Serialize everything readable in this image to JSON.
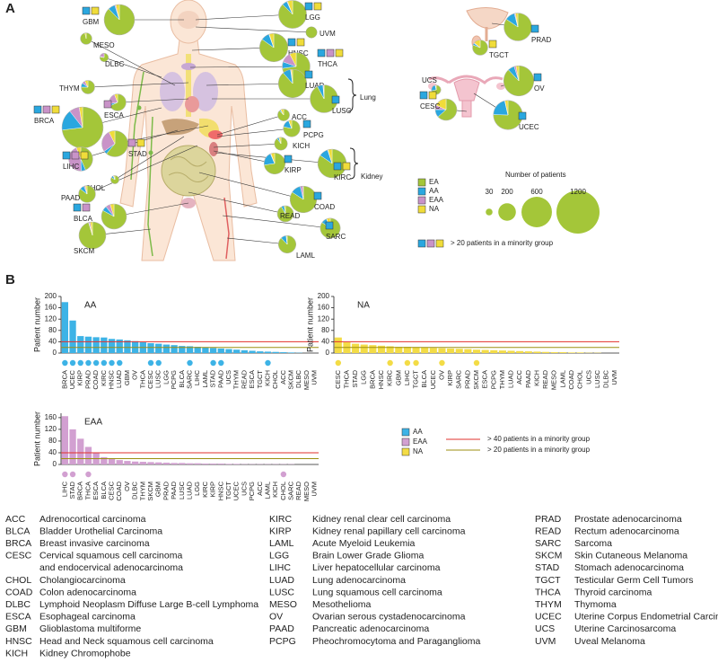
{
  "panel_labels": [
    "A",
    "B"
  ],
  "chart_data": [
    {
      "type": "pie",
      "categories": [
        "GBM",
        "MESO",
        "DLBC",
        "THYM",
        "ESCA",
        "BRCA",
        "STAD",
        "LIHC",
        "CHOL",
        "PAAD",
        "BLCA",
        "SKCM",
        "LGG",
        "UVM",
        "HNSC",
        "THCA",
        "LUAD",
        "LUSC",
        "ACC",
        "PCPG",
        "KICH",
        "KIRP",
        "KIRC",
        "COAD",
        "READ",
        "SARC",
        "LAML",
        "PRAD",
        "TGCT",
        "OV",
        "UCS",
        "CESC",
        "UCEC"
      ],
      "series": [
        {
          "name": "EA",
          "color": "#a4c639",
          "values": [
            526,
            84,
            37,
            90,
            126,
            804,
            269,
            161,
            38,
            158,
            340,
            448,
            446,
            80,
            441,
            364,
            460,
            461,
            81,
            141,
            99,
            211,
            448,
            387,
            156,
            220,
            176,
            422,
            121,
            519,
            41,
            190,
            415
          ]
        },
        {
          "name": "AA",
          "color": "#2aa7df",
          "values": [
            45,
            0,
            1,
            12,
            8,
            180,
            18,
            22,
            4,
            16,
            25,
            2,
            30,
            0,
            50,
            38,
            48,
            33,
            3,
            28,
            5,
            60,
            55,
            56,
            10,
            24,
            20,
            58,
            6,
            42,
            14,
            35,
            115
          ],
          "flagged": [
            true,
            false,
            false,
            false,
            false,
            true,
            false,
            true,
            false,
            false,
            true,
            false,
            true,
            false,
            true,
            true,
            true,
            true,
            false,
            true,
            false,
            true,
            true,
            true,
            false,
            true,
            false,
            true,
            false,
            true,
            false,
            true,
            true
          ]
        },
        {
          "name": "EAA",
          "color": "#c993c8",
          "values": [
            7,
            0,
            10,
            9,
            40,
            88,
            120,
            165,
            1,
            5,
            25,
            8,
            4,
            0,
            3,
            60,
            4,
            5,
            1,
            1,
            1,
            3,
            3,
            15,
            0,
            1,
            1,
            6,
            2,
            12,
            1,
            20,
            2
          ],
          "flagged": [
            false,
            false,
            false,
            false,
            true,
            true,
            true,
            true,
            false,
            false,
            true,
            false,
            false,
            false,
            false,
            true,
            false,
            false,
            false,
            false,
            false,
            false,
            false,
            false,
            false,
            false,
            false,
            false,
            false,
            false,
            false,
            false,
            false
          ]
        },
        {
          "name": "NA",
          "color": "#f0dc3a",
          "values": [
            22,
            3,
            0,
            9,
            11,
            28,
            33,
            22,
            2,
            6,
            20,
            12,
            30,
            0,
            26,
            38,
            8,
            1,
            7,
            10,
            5,
            16,
            24,
            2,
            4,
            15,
            3,
            14,
            21,
            17,
            1,
            55,
            18
          ],
          "flagged": [
            true,
            false,
            false,
            false,
            false,
            true,
            true,
            true,
            false,
            false,
            false,
            false,
            true,
            false,
            true,
            true,
            false,
            false,
            false,
            false,
            false,
            false,
            true,
            false,
            false,
            false,
            false,
            false,
            true,
            false,
            false,
            true,
            false
          ]
        }
      ],
      "size_legend": {
        "title": "Number of patients",
        "values": [
          30,
          200,
          600,
          1200
        ]
      },
      "minority_legend": "> 20 patients in a minority group",
      "brackets": [
        "Lung",
        "Kidney"
      ]
    },
    {
      "type": "bar",
      "title": "AA",
      "y_label": "Patient number",
      "color": "#3db3e6",
      "categories": [
        "BRCA",
        "UCEC",
        "KIRP",
        "PRAD",
        "COAD",
        "KIRC",
        "HNSC",
        "LUAD",
        "GBM",
        "OV",
        "THCA",
        "CESC",
        "LUSC",
        "LGG",
        "PCPG",
        "BLCA",
        "SARC",
        "LIHC",
        "LAML",
        "STAD",
        "PAAD",
        "UCS",
        "THYM",
        "READ",
        "ESCA",
        "TGCT",
        "KICH",
        "CHOL",
        "ACC",
        "SKCM",
        "DLBC",
        "MESO",
        "UVM"
      ],
      "values": [
        180,
        115,
        60,
        58,
        56,
        55,
        50,
        48,
        45,
        42,
        38,
        35,
        33,
        30,
        28,
        25,
        24,
        22,
        20,
        18,
        16,
        14,
        12,
        10,
        8,
        6,
        5,
        4,
        3,
        2,
        1,
        0,
        0
      ],
      "marked": [
        true,
        true,
        true,
        true,
        true,
        true,
        true,
        true,
        false,
        false,
        false,
        true,
        true,
        false,
        false,
        false,
        true,
        false,
        false,
        true,
        true,
        false,
        false,
        false,
        false,
        false,
        true,
        false,
        false,
        false,
        false,
        false,
        false
      ],
      "ylim": [
        0,
        200
      ],
      "yticks": [
        0,
        40,
        80,
        120,
        160,
        200
      ],
      "reference_lines": [
        {
          "value": 40,
          "color": "#e2302c"
        },
        {
          "value": 20,
          "color": "#9c8f12"
        }
      ]
    },
    {
      "type": "bar",
      "title": "NA",
      "y_label": "Patient number",
      "color": "#f3dc46",
      "categories": [
        "CESC",
        "THCA",
        "STAD",
        "LGG",
        "BRCA",
        "HNSC",
        "KIRC",
        "GBM",
        "LIHC",
        "TGCT",
        "BLCA",
        "UCEC",
        "OV",
        "KIRP",
        "SARC",
        "PRAD",
        "SKCM",
        "ESCA",
        "PCPG",
        "THYM",
        "LUAD",
        "ACC",
        "PAAD",
        "KICH",
        "READ",
        "MESO",
        "LAML",
        "COAD",
        "CHOL",
        "UCS",
        "LUSC",
        "DLBC",
        "UVM"
      ],
      "values": [
        55,
        38,
        33,
        30,
        28,
        26,
        24,
        22,
        22,
        21,
        20,
        18,
        17,
        16,
        15,
        14,
        12,
        11,
        10,
        9,
        8,
        7,
        6,
        5,
        4,
        3,
        3,
        2,
        2,
        1,
        1,
        0,
        0
      ],
      "marked": [
        true,
        false,
        false,
        false,
        false,
        false,
        true,
        false,
        true,
        true,
        false,
        false,
        true,
        false,
        false,
        false,
        true,
        false,
        false,
        false,
        false,
        false,
        false,
        false,
        false,
        false,
        false,
        false,
        false,
        false,
        false,
        false,
        false
      ],
      "ylim": [
        0,
        200
      ],
      "yticks": [
        0,
        40,
        80,
        120,
        160,
        200
      ],
      "reference_lines": [
        {
          "value": 40,
          "color": "#e2302c"
        },
        {
          "value": 20,
          "color": "#9c8f12"
        }
      ]
    },
    {
      "type": "bar",
      "title": "EAA",
      "y_label": "Patient number",
      "color": "#d2a0d1",
      "categories": [
        "LIHC",
        "STAD",
        "BRCA",
        "THCA",
        "ESCA",
        "BLCA",
        "CESC",
        "COAD",
        "OV",
        "DLBC",
        "THYM",
        "SKCM",
        "GBM",
        "PRAD",
        "PAAD",
        "LUSC",
        "LUAD",
        "LGG",
        "KIRC",
        "KIRP",
        "HNSC",
        "TGCT",
        "UCEC",
        "UCS",
        "PCPG",
        "ACC",
        "LAML",
        "KICH",
        "CHOL",
        "SARC",
        "READ",
        "MESO",
        "UVM"
      ],
      "values": [
        165,
        120,
        88,
        60,
        40,
        25,
        20,
        15,
        12,
        10,
        9,
        8,
        7,
        6,
        5,
        5,
        4,
        4,
        3,
        3,
        3,
        2,
        2,
        1,
        1,
        1,
        1,
        1,
        1,
        1,
        0,
        0,
        0
      ],
      "marked": [
        true,
        true,
        false,
        true,
        false,
        false,
        false,
        false,
        false,
        false,
        false,
        false,
        false,
        false,
        false,
        false,
        false,
        false,
        false,
        false,
        false,
        false,
        false,
        false,
        false,
        false,
        false,
        false,
        true,
        false,
        false,
        false,
        false
      ],
      "ylim": [
        0,
        175
      ],
      "yticks": [
        0,
        40,
        80,
        120,
        160
      ],
      "reference_lines": [
        {
          "value": 40,
          "color": "#e2302c"
        },
        {
          "value": 20,
          "color": "#9c8f12"
        }
      ]
    }
  ],
  "panel_b_legend": {
    "groups": [
      {
        "name": "AA",
        "color": "#3db3e6"
      },
      {
        "name": "EAA",
        "color": "#d2a0d1"
      },
      {
        "name": "NA",
        "color": "#f3dc46"
      }
    ],
    "lines": [
      {
        "label": "> 40 patients in a minority group",
        "color": "#e2302c"
      },
      {
        "label": "> 20 patients in a minority group",
        "color": "#9c8f12"
      }
    ]
  },
  "abbreviations": [
    [
      [
        "ACC",
        "Adrenocortical carcinoma"
      ],
      [
        "BLCA",
        "Bladder Urothelial Carcinoma"
      ],
      [
        "BRCA",
        "Breast invasive carcinoma"
      ],
      [
        "CESC",
        "Cervical squamous cell carcinoma"
      ],
      [
        null,
        "and endocervical adenocarcinoma"
      ],
      [
        "CHOL",
        "Cholangiocarcinoma"
      ],
      [
        "COAD",
        "Colon adenocarcinoma"
      ],
      [
        "DLBC",
        "Lymphoid Neoplasm Diffuse Large B-cell Lymphoma"
      ],
      [
        "ESCA",
        "Esophageal carcinoma"
      ],
      [
        "GBM",
        "Glioblastoma multiforme"
      ],
      [
        "HNSC",
        "Head and Neck squamous cell carcinoma"
      ],
      [
        "KICH",
        "Kidney Chromophobe"
      ]
    ],
    [
      [
        "KIRC",
        "Kidney renal clear cell carcinoma"
      ],
      [
        "KIRP",
        "Kidney renal papillary cell carcinoma"
      ],
      [
        "LAML",
        "Acute Myeloid Leukemia"
      ],
      [
        "LGG",
        "Brain Lower Grade Glioma"
      ],
      [
        "LIHC",
        "Liver hepatocellular carcinoma"
      ],
      [
        "LUAD",
        "Lung adenocarcinoma"
      ],
      [
        "LUSC",
        "Lung squamous cell carcinoma"
      ],
      [
        "MESO",
        "Mesothelioma"
      ],
      [
        "OV",
        "Ovarian serous cystadenocarcinoma"
      ],
      [
        "PAAD",
        "Pancreatic adenocarcinoma"
      ],
      [
        "PCPG",
        "Pheochromocytoma and Paraganglioma"
      ]
    ],
    [
      [
        "PRAD",
        "Prostate adenocarcinoma"
      ],
      [
        "READ",
        "Rectum adenocarcinoma"
      ],
      [
        "SARC",
        "Sarcoma"
      ],
      [
        "SKCM",
        "Skin Cutaneous Melanoma"
      ],
      [
        "STAD",
        "Stomach adenocarcinoma"
      ],
      [
        "TGCT",
        "Testicular Germ Cell Tumors"
      ],
      [
        "THCA",
        "Thyroid carcinoma"
      ],
      [
        "THYM",
        "Thymoma"
      ],
      [
        "UCEC",
        "Uterine Corpus Endometrial Carcinoma"
      ],
      [
        "UCS",
        "Uterine Carcinosarcoma"
      ],
      [
        "UVM",
        "Uveal Melanoma"
      ]
    ]
  ]
}
